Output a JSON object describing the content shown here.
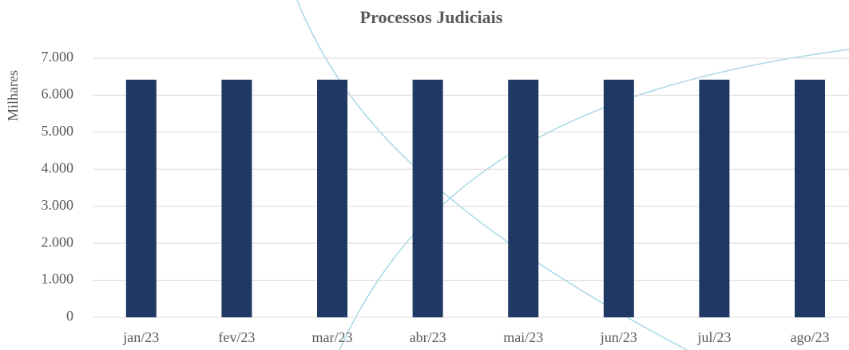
{
  "chart_data": {
    "type": "bar",
    "title": "Processos Judiciais",
    "y_label": "Milhares",
    "categories": [
      "jan/23",
      "fev/23",
      "mar/23",
      "abr/23",
      "mai/23",
      "jun/23",
      "jul/23",
      "ago/23"
    ],
    "values": [
      6420,
      6420,
      6420,
      6420,
      6420,
      6420,
      6420,
      6420
    ],
    "color": "#203864",
    "ylim": [
      0,
      7000
    ],
    "yticks": [
      0,
      {
        "value": 1000,
        "label": "1.000"
      },
      {
        "value": 2000,
        "label": "2.000"
      },
      {
        "value": 3000,
        "label": "3.000"
      },
      {
        "value": 4000,
        "label": "4.000"
      },
      {
        "value": 5000,
        "label": "5.000"
      },
      {
        "value": 6000,
        "label": "6.000"
      },
      {
        "value": 7000,
        "label": "7.000"
      }
    ],
    "grid": true
  }
}
